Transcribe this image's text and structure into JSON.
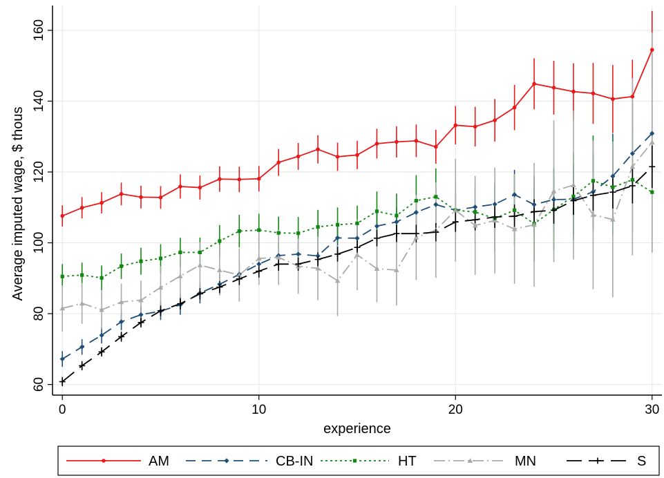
{
  "chart_data": {
    "type": "line",
    "title": "",
    "xlabel": "experience",
    "ylabel": "Average imputed wage, $ thous",
    "xlim": [
      -0.5,
      30.5
    ],
    "ylim": [
      57,
      167
    ],
    "x_ticks": [
      0,
      10,
      20,
      30
    ],
    "y_ticks": [
      60,
      80,
      100,
      120,
      140,
      160
    ],
    "grid": true,
    "legend_position": "bottom",
    "x": [
      0,
      1,
      2,
      3,
      4,
      5,
      6,
      7,
      8,
      9,
      10,
      11,
      12,
      13,
      14,
      15,
      16,
      17,
      18,
      19,
      20,
      21,
      22,
      23,
      24,
      25,
      26,
      27,
      28,
      29,
      30
    ],
    "series": [
      {
        "name": "AM",
        "color": "#e8191a",
        "dash": "",
        "marker": "circle",
        "values": [
          107.6,
          109.9,
          111.3,
          113.8,
          112.9,
          112.8,
          115.9,
          115.6,
          118.0,
          117.9,
          118.1,
          122.7,
          124.4,
          126.4,
          124.3,
          124.8,
          128.0,
          128.5,
          128.8,
          127.1,
          133.2,
          132.8,
          134.6,
          138.2,
          144.9,
          143.8,
          142.7,
          142.2,
          140.6,
          141.3,
          154.5
        ],
        "err": [
          3.0,
          3.0,
          3.0,
          3.2,
          3.2,
          3.2,
          3.4,
          3.4,
          3.6,
          3.6,
          3.6,
          3.8,
          3.8,
          4.0,
          4.0,
          4.0,
          4.2,
          4.4,
          4.6,
          4.8,
          5.4,
          5.6,
          6.0,
          6.4,
          7.2,
          7.6,
          8.0,
          8.6,
          9.6,
          10.4,
          11.0
        ]
      },
      {
        "name": "CB-IN",
        "color": "#1f4e79",
        "dash": "14,9",
        "marker": "diamond",
        "values": [
          67.2,
          70.6,
          73.9,
          77.7,
          79.7,
          80.7,
          82.5,
          85.8,
          88.3,
          91.1,
          94.0,
          96.4,
          96.8,
          96.3,
          101.4,
          101.3,
          104.7,
          105.9,
          108.6,
          110.8,
          109.2,
          110.1,
          110.9,
          113.6,
          110.8,
          112.2,
          112.3,
          114.4,
          118.8,
          125.2,
          130.9
        ],
        "err": [
          2.2,
          2.2,
          2.3,
          2.4,
          2.4,
          2.5,
          2.8,
          2.9,
          3.0,
          3.0,
          3.0,
          3.1,
          3.1,
          3.3,
          3.4,
          3.6,
          3.8,
          4.0,
          4.2,
          4.5,
          4.8,
          5.4,
          6.2,
          7.0,
          8.0,
          9.0,
          10.0,
          11.0,
          12.0,
          14.0,
          16.0
        ]
      },
      {
        "name": "HT",
        "color": "#118811",
        "dash": "3,4",
        "marker": "square",
        "values": [
          90.5,
          90.9,
          90.1,
          93.4,
          94.8,
          95.6,
          97.3,
          97.3,
          100.5,
          103.3,
          103.6,
          102.8,
          102.7,
          104.5,
          105.1,
          105.5,
          108.9,
          107.7,
          111.9,
          113.0,
          109.2,
          108.7,
          106.9,
          109.2,
          105.4,
          109.4,
          113.1,
          117.5,
          115.7,
          117.8,
          114.3
        ],
        "err": [
          3.5,
          3.5,
          3.5,
          3.6,
          3.8,
          4.0,
          4.1,
          4.2,
          4.5,
          4.6,
          4.6,
          4.6,
          4.6,
          4.8,
          4.9,
          5.0,
          5.6,
          6.2,
          7.2,
          8.0,
          8.6,
          9.0,
          9.4,
          10.0,
          10.6,
          11.4,
          12.4,
          12.8,
          13.6,
          14.6,
          17.0
        ]
      },
      {
        "name": "MN",
        "color": "#aaaaaa",
        "dash": "16,5,2,5",
        "marker": "triangle",
        "values": [
          81.5,
          82.9,
          81.1,
          83.3,
          83.8,
          87.4,
          90.6,
          93.7,
          92.3,
          90.9,
          95.6,
          95.9,
          93.4,
          92.8,
          89.3,
          96.6,
          92.7,
          92.3,
          101.5,
          103.6,
          109.2,
          104.9,
          106.3,
          103.9,
          105.1,
          114.6,
          116.3,
          107.9,
          106.6,
          121.5,
          128.4
        ],
        "err": [
          6.5,
          5.8,
          5.5,
          5.2,
          5.5,
          6.0,
          6.8,
          6.5,
          7.2,
          7.5,
          7.5,
          7.8,
          7.8,
          9.0,
          10.0,
          10.0,
          9.5,
          10.0,
          12.0,
          13.5,
          14.5,
          14.0,
          15.0,
          15.5,
          17.5,
          20.0,
          21.0,
          21.0,
          22.0,
          25.0,
          31.0
        ]
      },
      {
        "name": "S",
        "color": "#000000",
        "dash": "22,10",
        "marker": "plus",
        "values": [
          60.8,
          65.3,
          69.2,
          73.5,
          77.5,
          80.8,
          82.8,
          85.6,
          87.5,
          89.8,
          92.0,
          94.0,
          94.0,
          95.3,
          96.8,
          98.7,
          101.3,
          102.6,
          102.6,
          103.0,
          105.9,
          106.5,
          107.3,
          107.5,
          108.8,
          109.2,
          111.9,
          113.4,
          114.3,
          116.1,
          121.5
        ],
        "err": [
          1.3,
          1.3,
          1.3,
          1.4,
          1.4,
          1.5,
          1.6,
          1.6,
          1.7,
          1.7,
          1.8,
          1.9,
          1.9,
          2.0,
          2.1,
          2.2,
          2.3,
          2.4,
          2.5,
          2.6,
          2.8,
          3.0,
          3.1,
          3.3,
          3.5,
          3.8,
          4.0,
          4.3,
          4.6,
          5.0,
          6.0
        ]
      }
    ]
  },
  "colors": {
    "grid": "#e6e6e6",
    "axis": "#000000",
    "background": "#ffffff"
  }
}
